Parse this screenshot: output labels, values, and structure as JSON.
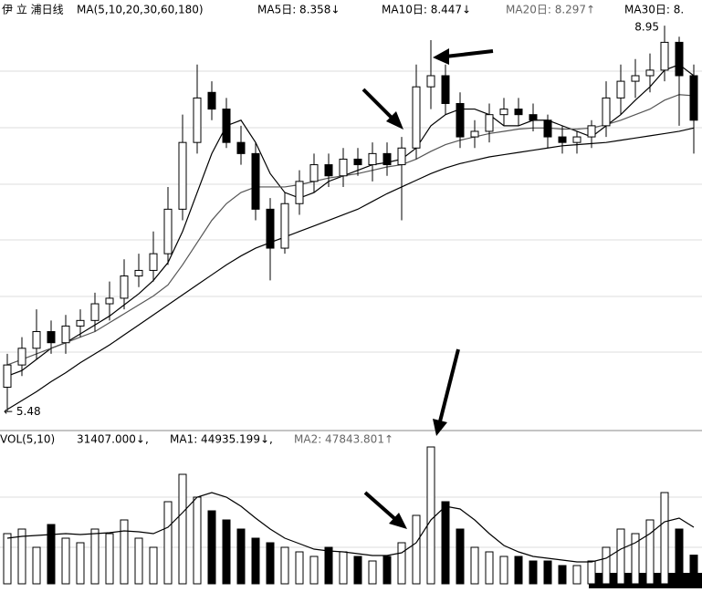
{
  "header": {
    "title": "伊 立 浦日线",
    "ma_params": "MA(5,10,20,30,60,180)",
    "ma5": "MA5日: 8.358↓",
    "ma10": "MA10日: 8.447↓",
    "ma20": "MA20日: 8.297↑",
    "ma30": "MA30日: 8."
  },
  "chart_data": [
    {
      "type": "candlestick",
      "open": [
        5.7,
        5.9,
        6.05,
        6.2,
        6.1,
        6.25,
        6.3,
        6.45,
        6.5,
        6.7,
        6.75,
        6.9,
        7.3,
        7.9,
        8.35,
        8.2,
        7.9,
        7.8,
        7.3,
        6.95,
        7.35,
        7.55,
        7.7,
        7.6,
        7.75,
        7.7,
        7.8,
        7.7,
        7.85,
        8.4,
        8.5,
        8.25,
        7.95,
        8.0,
        8.15,
        8.2,
        8.15,
        8.1,
        7.95,
        7.9,
        7.95,
        8.05,
        8.3,
        8.45,
        8.5,
        8.55,
        8.8,
        8.5
      ],
      "high": [
        6.0,
        6.15,
        6.4,
        6.3,
        6.35,
        6.4,
        6.55,
        6.65,
        6.85,
        6.9,
        7.1,
        7.5,
        8.15,
        8.6,
        8.45,
        8.3,
        8.05,
        7.9,
        7.4,
        7.45,
        7.65,
        7.8,
        7.8,
        7.85,
        7.85,
        7.9,
        7.9,
        7.95,
        8.6,
        8.82,
        8.6,
        8.35,
        8.1,
        8.25,
        8.3,
        8.3,
        8.25,
        8.15,
        8.05,
        8.0,
        8.1,
        8.45,
        8.6,
        8.65,
        8.7,
        8.95,
        8.85,
        8.6
      ],
      "low": [
        5.48,
        5.8,
        5.95,
        6.0,
        6.0,
        6.15,
        6.2,
        6.3,
        6.4,
        6.6,
        6.65,
        6.8,
        7.2,
        7.8,
        8.1,
        7.85,
        7.7,
        7.2,
        6.66,
        6.9,
        7.25,
        7.45,
        7.5,
        7.5,
        7.6,
        7.55,
        7.6,
        7.2,
        7.75,
        8.2,
        8.15,
        7.85,
        7.85,
        7.9,
        8.05,
        8.05,
        8.0,
        7.85,
        7.8,
        7.8,
        7.85,
        7.95,
        8.15,
        8.3,
        8.35,
        8.45,
        8.05,
        7.8
      ],
      "close": [
        5.9,
        6.05,
        6.2,
        6.1,
        6.25,
        6.3,
        6.45,
        6.5,
        6.7,
        6.75,
        6.9,
        7.3,
        7.9,
        8.3,
        8.2,
        7.9,
        7.8,
        7.3,
        6.95,
        7.35,
        7.55,
        7.7,
        7.6,
        7.75,
        7.7,
        7.8,
        7.7,
        7.85,
        8.4,
        8.5,
        8.25,
        7.95,
        8.0,
        8.15,
        8.2,
        8.15,
        8.1,
        7.95,
        7.9,
        7.95,
        8.05,
        8.3,
        8.45,
        8.5,
        8.55,
        8.8,
        8.5,
        8.1
      ],
      "lines": [
        {
          "color": "#000000",
          "values": [
            5.8,
            5.85,
            5.95,
            6.05,
            6.1,
            6.18,
            6.26,
            6.34,
            6.44,
            6.54,
            6.66,
            6.82,
            7.1,
            7.45,
            7.8,
            8.05,
            8.1,
            7.9,
            7.62,
            7.45,
            7.4,
            7.45,
            7.55,
            7.6,
            7.65,
            7.7,
            7.72,
            7.75,
            7.85,
            8.05,
            8.15,
            8.2,
            8.2,
            8.15,
            8.05,
            8.05,
            8.1,
            8.1,
            8.05,
            8.0,
            7.95,
            8.05,
            8.15,
            8.28,
            8.4,
            8.55,
            8.6,
            8.5
          ]
        },
        {
          "color": "#555555",
          "values": [
            5.9,
            5.95,
            6.0,
            6.05,
            6.1,
            6.15,
            6.2,
            6.28,
            6.36,
            6.44,
            6.52,
            6.62,
            6.8,
            7.0,
            7.2,
            7.35,
            7.45,
            7.5,
            7.5,
            7.5,
            7.52,
            7.55,
            7.58,
            7.6,
            7.62,
            7.65,
            7.68,
            7.7,
            7.75,
            7.82,
            7.88,
            7.92,
            7.95,
            7.98,
            8.0,
            8.02,
            8.03,
            8.03,
            8.02,
            8.02,
            8.03,
            8.06,
            8.1,
            8.15,
            8.2,
            8.28,
            8.33,
            8.32
          ]
        },
        {
          "color": "#000000",
          "values": [
            5.5,
            5.58,
            5.66,
            5.75,
            5.83,
            5.92,
            6.0,
            6.08,
            6.17,
            6.26,
            6.35,
            6.44,
            6.53,
            6.62,
            6.71,
            6.8,
            6.88,
            6.95,
            7.0,
            7.05,
            7.1,
            7.15,
            7.2,
            7.25,
            7.3,
            7.37,
            7.44,
            7.5,
            7.56,
            7.62,
            7.67,
            7.71,
            7.74,
            7.77,
            7.79,
            7.81,
            7.83,
            7.85,
            7.87,
            7.88,
            7.89,
            7.9,
            7.92,
            7.94,
            7.96,
            7.98,
            8.0,
            8.03
          ]
        }
      ],
      "ylim": [
        5.45,
        9.0
      ],
      "annotations": {
        "high": "8.95",
        "low": "← 5.48"
      }
    },
    {
      "type": "bar",
      "title": "VOL(5,10)",
      "legend": [
        "31407.000↓,",
        "MA1: 44935.199↓,",
        "MA2: 47843.801↑"
      ],
      "values": [
        55000,
        60000,
        40000,
        65000,
        50000,
        45000,
        60000,
        55000,
        70000,
        50000,
        40000,
        90000,
        120000,
        95000,
        80000,
        70000,
        60000,
        50000,
        45000,
        40000,
        35000,
        30000,
        40000,
        35000,
        30000,
        25000,
        30000,
        45000,
        75000,
        150000,
        90000,
        60000,
        40000,
        35000,
        30000,
        30000,
        25000,
        25000,
        20000,
        20000,
        25000,
        40000,
        60000,
        55000,
        70000,
        100000,
        60000,
        31407
      ],
      "lines": [
        {
          "color": "#000000",
          "values": [
            50000,
            52000,
            53000,
            54000,
            55000,
            54000,
            55000,
            56000,
            58000,
            57000,
            55000,
            62000,
            78000,
            95000,
            100000,
            95000,
            85000,
            72000,
            60000,
            50000,
            44000,
            38000,
            36000,
            35000,
            33000,
            31000,
            31000,
            34000,
            45000,
            70000,
            85000,
            82000,
            70000,
            55000,
            42000,
            35000,
            30000,
            28000,
            26000,
            24000,
            24000,
            28000,
            38000,
            45000,
            55000,
            68000,
            72000,
            62000
          ]
        }
      ],
      "ylim": [
        0,
        150000
      ]
    }
  ]
}
